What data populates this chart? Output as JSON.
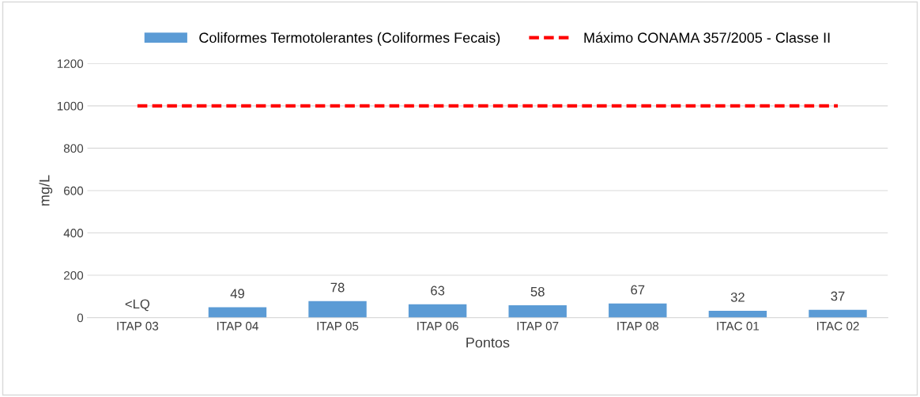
{
  "chart_data": {
    "type": "bar",
    "xlabel": "Pontos",
    "ylabel": "mg/L",
    "categories": [
      "ITAP 03",
      "ITAP 04",
      "ITAP 05",
      "ITAP 06",
      "ITAP 07",
      "ITAP 08",
      "ITAC 01",
      "ITAC 02"
    ],
    "series": [
      {
        "name": "Coliformes Termotolerantes (Coliformes Fecais)",
        "color": "#5b9bd5",
        "values": [
          null,
          49,
          78,
          63,
          58,
          67,
          32,
          37
        ],
        "value_labels": [
          "<LQ",
          "49",
          "78",
          "63",
          "58",
          "67",
          "32",
          "37"
        ]
      },
      {
        "name": "Máximo CONAMA 357/2005 - Classe II",
        "type": "line",
        "color": "#ff0000",
        "line_style": "dashed",
        "values": [
          1000,
          1000,
          1000,
          1000,
          1000,
          1000,
          1000,
          1000
        ]
      }
    ],
    "ylim": [
      0,
      1200
    ],
    "yticks": [
      0,
      200,
      400,
      600,
      800,
      1000,
      1200
    ],
    "grid": "y",
    "legend": "top"
  }
}
